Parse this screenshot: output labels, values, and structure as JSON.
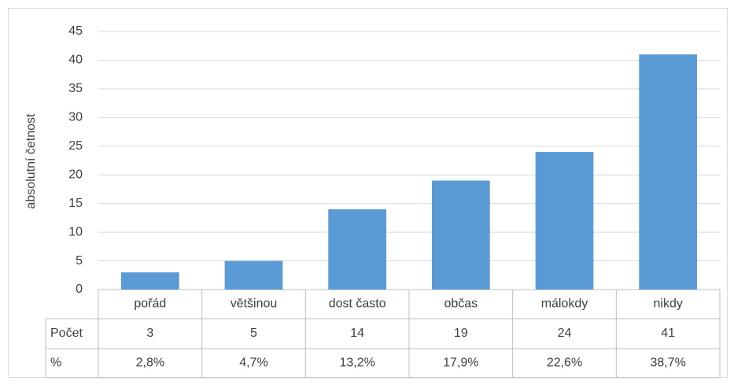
{
  "chart_data": {
    "type": "bar",
    "y_label": "absolutní četnost",
    "categories": [
      "pořád",
      "většinou",
      "dost často",
      "občas",
      "málokdy",
      "nikdy"
    ],
    "values": [
      3,
      5,
      14,
      19,
      24,
      41
    ],
    "color": "#5b9bd5",
    "ylim": [
      0,
      45
    ],
    "yticks": [
      0,
      5,
      10,
      15,
      20,
      25,
      30,
      35,
      40,
      45
    ],
    "grid": true,
    "table": {
      "row_labels": [
        "Počet",
        "%"
      ],
      "percent_labels": [
        "2,8%",
        "4,7%",
        "13,2%",
        "17,9%",
        "22,6%",
        "38,7%"
      ]
    }
  }
}
